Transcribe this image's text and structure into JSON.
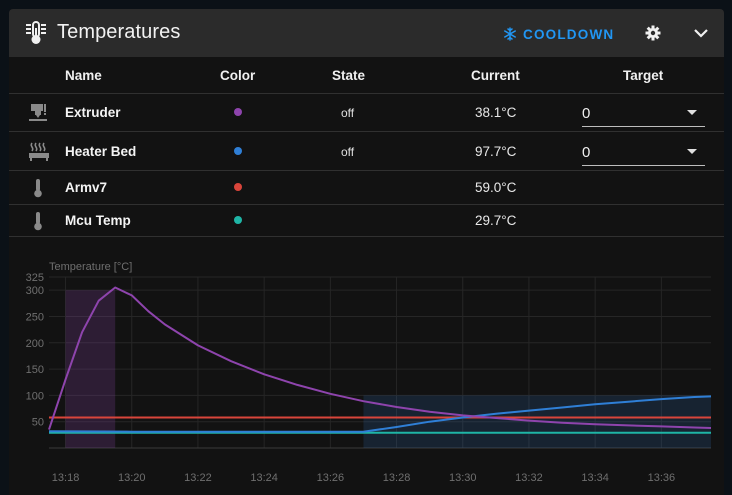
{
  "header": {
    "title": "Temperatures",
    "cooldown_label": "COOLDOWN",
    "icons": [
      "thermometer-lines-icon",
      "snowflake-icon",
      "gear-icon",
      "chevron-down-icon"
    ]
  },
  "table": {
    "columns": [
      "Name",
      "Color",
      "State",
      "Current",
      "Target"
    ],
    "rows": [
      {
        "icon": "printer-nozzle-icon",
        "name": "Extruder",
        "color": "#8e44ad",
        "state": "off",
        "current": "38.1°C",
        "target": "0"
      },
      {
        "icon": "heated-bed-icon",
        "name": "Heater Bed",
        "color": "#2f7fd6",
        "state": "off",
        "current": "97.7°C",
        "target": "0"
      },
      {
        "icon": "thermometer-icon",
        "name": "Armv7",
        "color": "#d9453b",
        "state": "",
        "current": "59.0°C",
        "target": ""
      },
      {
        "icon": "thermometer-icon",
        "name": "Mcu Temp",
        "color": "#1fb5a6",
        "state": "",
        "current": "29.7°C",
        "target": ""
      }
    ]
  },
  "colors": {
    "accent": "#2196f3",
    "extruder": "#8e44ad",
    "heater_bed": "#2f7fd6",
    "armv7": "#d9453b",
    "mcu": "#1fb5a6"
  },
  "chart_data": {
    "type": "line",
    "ylabel": "Temperature [°C]",
    "ylim": [
      0,
      325
    ],
    "yticks": [
      50,
      100,
      150,
      200,
      250,
      300,
      325
    ],
    "xlim": [
      "13:17:30",
      "13:37:30"
    ],
    "xticks": [
      "13:18",
      "13:20",
      "13:22",
      "13:24",
      "13:26",
      "13:28",
      "13:30",
      "13:32",
      "13:34",
      "13:36"
    ],
    "grid": true,
    "highlight_regions": [
      {
        "series": "Extruder",
        "from": "13:18",
        "to": "13:19:30",
        "target": 300
      },
      {
        "series": "Heater Bed",
        "from": "13:27",
        "to": "13:37:30",
        "target": 100
      }
    ],
    "series": [
      {
        "name": "Extruder",
        "color": "#8e44ad",
        "x": [
          "13:17:30",
          "13:18",
          "13:18:30",
          "13:19",
          "13:19:30",
          "13:20",
          "13:20:30",
          "13:21",
          "13:22",
          "13:23",
          "13:24",
          "13:25",
          "13:26",
          "13:27",
          "13:28",
          "13:29",
          "13:30",
          "13:31",
          "13:32",
          "13:33",
          "13:34",
          "13:35",
          "13:36",
          "13:37",
          "13:37:30"
        ],
        "y": [
          35,
          130,
          220,
          280,
          305,
          290,
          260,
          235,
          195,
          165,
          140,
          120,
          103,
          89,
          78,
          69,
          62,
          57,
          52,
          48,
          45,
          43,
          41,
          39,
          38
        ]
      },
      {
        "name": "Heater Bed",
        "color": "#2f7fd6",
        "x": [
          "13:17:30",
          "13:20",
          "13:24",
          "13:26",
          "13:27",
          "13:28",
          "13:29",
          "13:30",
          "13:31",
          "13:32",
          "13:33",
          "13:34",
          "13:35",
          "13:36",
          "13:37",
          "13:37:30"
        ],
        "y": [
          32,
          31,
          31,
          31,
          31,
          40,
          50,
          58,
          65,
          71,
          77,
          83,
          88,
          93,
          97,
          98
        ]
      },
      {
        "name": "Armv7",
        "color": "#d9453b",
        "x": [
          "13:17:30",
          "13:20",
          "13:25",
          "13:30",
          "13:35",
          "13:37:30"
        ],
        "y": [
          58,
          58,
          58,
          58,
          58,
          58
        ]
      },
      {
        "name": "Mcu Temp",
        "color": "#1fb5a6",
        "x": [
          "13:17:30",
          "13:20",
          "13:25",
          "13:30",
          "13:35",
          "13:37:30"
        ],
        "y": [
          29,
          29,
          29,
          29,
          29,
          29
        ]
      }
    ]
  }
}
